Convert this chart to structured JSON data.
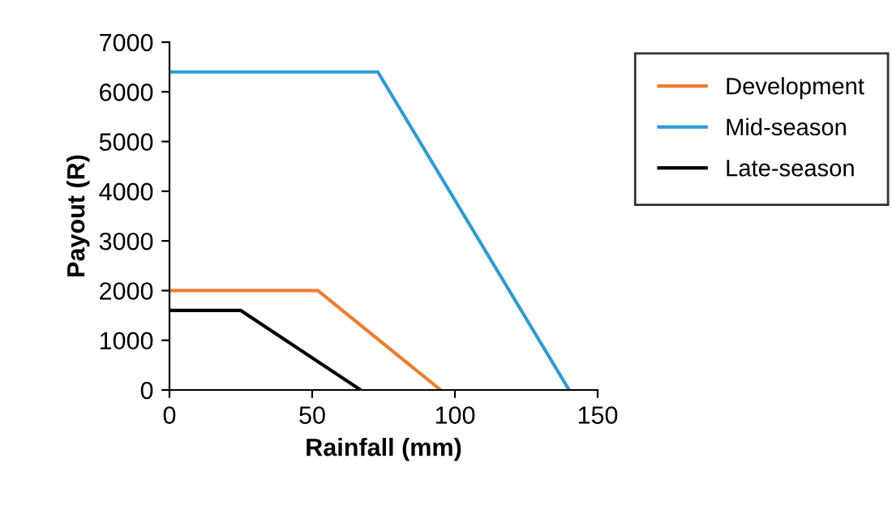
{
  "chart_data": {
    "type": "line",
    "xlabel": "Rainfall (mm)",
    "ylabel": "Payout (R)",
    "xlim": [
      0,
      150
    ],
    "xticks": [
      0,
      50,
      100,
      150
    ],
    "ylim": [
      0,
      7000
    ],
    "yticks": [
      0,
      1000,
      2000,
      3000,
      4000,
      5000,
      6000,
      7000
    ],
    "grid": false,
    "legend": "right",
    "series": [
      {
        "name": "Development",
        "color": "#ed7d31",
        "x": [
          0,
          52,
          95
        ],
        "values": [
          2000,
          2000,
          0
        ]
      },
      {
        "name": "Mid-season",
        "color": "#2e9bd6",
        "x": [
          0,
          73,
          140
        ],
        "values": [
          6400,
          6400,
          0
        ]
      },
      {
        "name": "Late-season",
        "color": "#000000",
        "x": [
          0,
          25,
          67
        ],
        "values": [
          1600,
          1600,
          0
        ]
      }
    ]
  }
}
